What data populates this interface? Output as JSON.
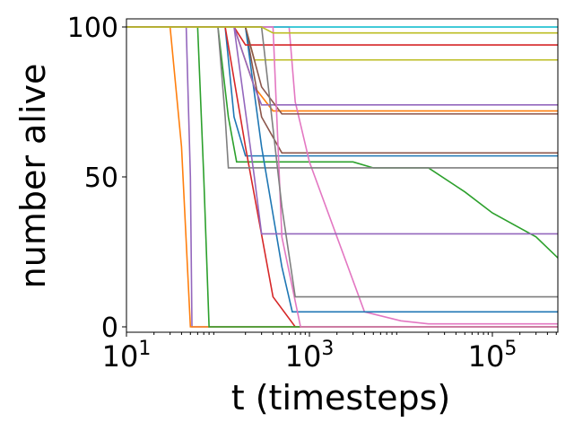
{
  "chart_data": {
    "type": "line",
    "xlabel": "t (timesteps)",
    "ylabel": "number alive",
    "xscale": "log",
    "xlim": [
      10,
      520000
    ],
    "ylim": [
      -1.8,
      102.7
    ],
    "xticks": [
      {
        "value": 10,
        "label": "10",
        "exponent": "1"
      },
      {
        "value": 1000,
        "label": "10",
        "exponent": "3"
      },
      {
        "value": 100000,
        "label": "10",
        "exponent": "5"
      }
    ],
    "yticks": [
      0,
      50,
      100
    ],
    "grid": false,
    "series": [
      {
        "color": "#1f77b4",
        "x": [
          10,
          120,
          150,
          200,
          520000
        ],
        "values": [
          100,
          100,
          70,
          57,
          57
        ]
      },
      {
        "color": "#ff7f0e",
        "x": [
          10,
          150,
          250,
          400,
          520000
        ],
        "values": [
          100,
          100,
          80,
          72,
          72
        ]
      },
      {
        "color": "#2ca02c",
        "x": [
          10,
          100,
          130,
          160,
          3000,
          5000,
          20000,
          50000,
          100000,
          300000,
          520000
        ],
        "values": [
          100,
          100,
          70,
          55,
          55,
          53,
          53,
          45,
          38,
          30,
          23
        ]
      },
      {
        "color": "#d62728",
        "x": [
          10,
          120,
          200,
          400,
          700,
          520000
        ],
        "values": [
          100,
          100,
          60,
          10,
          0,
          0
        ]
      },
      {
        "color": "#9467bd",
        "x": [
          10,
          45,
          50,
          52,
          520000
        ],
        "values": [
          100,
          100,
          50,
          0,
          0
        ]
      },
      {
        "color": "#8c564b",
        "x": [
          10,
          200,
          300,
          500,
          520000
        ],
        "values": [
          100,
          100,
          70,
          58,
          58
        ]
      },
      {
        "color": "#e377c2",
        "x": [
          10,
          600,
          700,
          1000,
          2000,
          4000,
          10000,
          20000,
          520000
        ],
        "values": [
          100,
          100,
          75,
          55,
          30,
          5,
          2,
          1,
          1
        ]
      },
      {
        "color": "#7f7f7f",
        "x": [
          10,
          100,
          120,
          130,
          520000
        ],
        "values": [
          100,
          100,
          70,
          53,
          53
        ]
      },
      {
        "color": "#bcbd22",
        "x": [
          10,
          200,
          250,
          520000
        ],
        "values": [
          100,
          100,
          89,
          89
        ]
      },
      {
        "color": "#17becf",
        "x": [
          10,
          520000
        ],
        "values": [
          100,
          100
        ]
      },
      {
        "color": "#1f77b4",
        "x": [
          10,
          200,
          300,
          500,
          650,
          520000
        ],
        "values": [
          100,
          100,
          60,
          20,
          5,
          5
        ]
      },
      {
        "color": "#ff7f0e",
        "x": [
          10,
          30,
          40,
          50,
          520000
        ],
        "values": [
          100,
          100,
          60,
          0,
          0
        ]
      },
      {
        "color": "#2ca02c",
        "x": [
          10,
          60,
          70,
          80,
          520000
        ],
        "values": [
          100,
          100,
          50,
          0,
          0
        ]
      },
      {
        "color": "#d62728",
        "x": [
          10,
          150,
          200,
          520000
        ],
        "values": [
          100,
          100,
          94,
          94
        ]
      },
      {
        "color": "#9467bd",
        "x": [
          10,
          150,
          250,
          300,
          520000
        ],
        "values": [
          100,
          100,
          80,
          74,
          74
        ]
      },
      {
        "color": "#9467bd",
        "x": [
          10,
          150,
          250,
          300,
          520000
        ],
        "values": [
          100,
          100,
          50,
          31,
          31
        ]
      },
      {
        "color": "#8c564b",
        "x": [
          10,
          200,
          300,
          500,
          520000
        ],
        "values": [
          100,
          100,
          80,
          71,
          71
        ]
      },
      {
        "color": "#e377c2",
        "x": [
          10,
          400,
          500,
          800,
          520000
        ],
        "values": [
          100,
          100,
          30,
          0,
          0
        ]
      },
      {
        "color": "#7f7f7f",
        "x": [
          10,
          300,
          500,
          700,
          520000
        ],
        "values": [
          100,
          100,
          40,
          10,
          10
        ]
      },
      {
        "color": "#bcbd22",
        "x": [
          10,
          300,
          400,
          520000
        ],
        "values": [
          100,
          100,
          98,
          98
        ]
      }
    ]
  }
}
